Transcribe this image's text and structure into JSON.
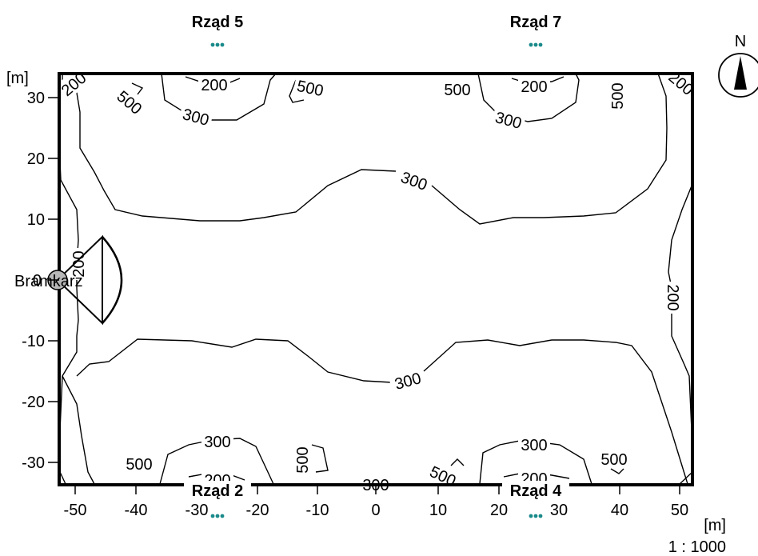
{
  "units": {
    "x": "[m]",
    "y": "[m]"
  },
  "scale": "1 : 1000",
  "north": "N",
  "x_ticks": [
    "-50",
    "-40",
    "-30",
    "-20",
    "-10",
    "0",
    "10",
    "20",
    "30",
    "40",
    "50"
  ],
  "y_ticks": [
    "30",
    "20",
    "10",
    "0",
    "-10",
    "-20",
    "-30"
  ],
  "rows": {
    "top_left": "Rząd 5",
    "top_right": "Rząd 7",
    "bottom_left": "Rząd 2",
    "bottom_right": "Rząd 4"
  },
  "gate_label": "Bramkarz",
  "contour_labels": {
    "tl_200": "200",
    "tl_500": "500",
    "tc1_200": "200",
    "tc1_300": "300",
    "tc1_500": "500",
    "tc2_500": "500",
    "tc2_200": "200",
    "tc2_300": "300",
    "tr_500": "500",
    "tr_200": "200",
    "mid_top_300": "300",
    "left_200": "200",
    "right_200": "200",
    "mid_bot_300": "300",
    "bl_500": "500",
    "bc1_300": "300",
    "bc1_200": "200",
    "bc1_500": "500",
    "bc_mid_300": "300",
    "bc2_500": "500",
    "bc2_300": "300",
    "bc2_200": "200",
    "br_500": "500"
  },
  "chart_data": {
    "type": "contour",
    "title": "",
    "xlabel": "[m]",
    "ylabel": "[m]",
    "xlim": [
      -55,
      55
    ],
    "ylim": [
      -34,
      34
    ],
    "contour_levels": [
      200,
      300,
      500
    ],
    "x_ticks": [
      -50,
      -40,
      -30,
      -20,
      -10,
      0,
      10,
      20,
      30,
      40,
      50
    ],
    "y_ticks": [
      30,
      20,
      10,
      0,
      -10,
      -20,
      -30
    ],
    "luminaire_rows": [
      {
        "label": "Rząd 5",
        "x": -26,
        "y": 36
      },
      {
        "label": "Rząd 7",
        "x": 26,
        "y": 36
      },
      {
        "label": "Rząd 2",
        "x": -26,
        "y": -36
      },
      {
        "label": "Rząd 4",
        "x": 26,
        "y": -36
      }
    ],
    "observer": {
      "label": "Bramkarz",
      "x": -53,
      "y": 0
    }
  }
}
